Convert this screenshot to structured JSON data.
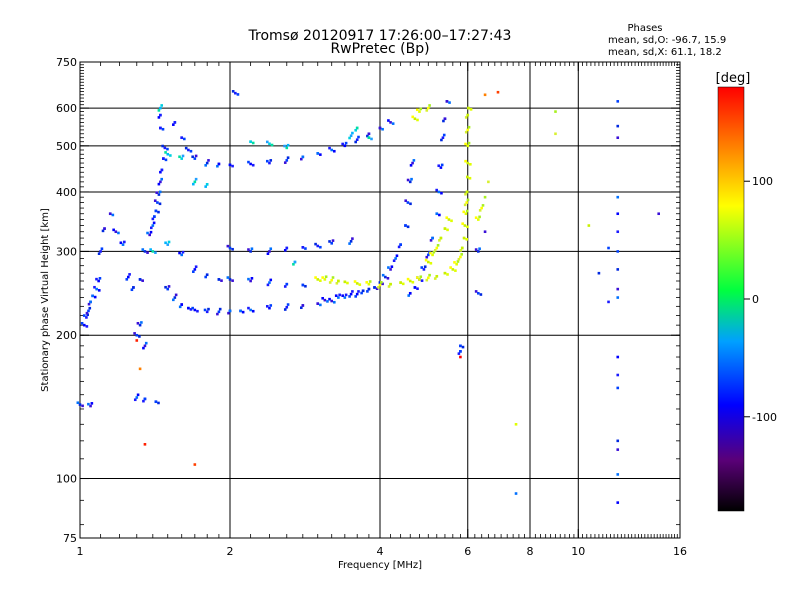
{
  "chart_data": {
    "type": "scatter",
    "title": "Tromsø 20120917 17:26:00–17:27:43",
    "subtitle": "RwPretec (Bp)",
    "xlabel": "Frequency [MHz]",
    "ylabel": "Stationary phase Virtual Height [km]",
    "x_scale": "log",
    "y_scale": "log",
    "xlim": [
      1,
      16
    ],
    "ylim": [
      75,
      750
    ],
    "x_ticks": [
      1,
      2,
      4,
      6,
      8,
      10,
      16
    ],
    "x_tick_labels": [
      "1",
      "2",
      "4",
      "6",
      "8",
      "10",
      "16"
    ],
    "y_ticks": [
      75,
      100,
      200,
      300,
      400,
      500,
      600,
      750
    ],
    "y_tick_labels": [
      "75",
      "100",
      "200",
      "300",
      "400",
      "500",
      "600",
      "750"
    ],
    "x_gridlines": [
      2,
      4,
      6,
      8,
      10
    ],
    "y_gridlines": [
      100,
      200,
      300,
      400,
      500,
      600
    ],
    "grid": true,
    "stats": {
      "header": "Phases",
      "line_o": "mean, sd,O: -96.7, 15.9",
      "line_x": "mean, sd,X:  61.1, 18.2"
    },
    "colorbar": {
      "label": "[deg]",
      "range": [
        -180,
        180
      ],
      "ticks": [
        -100,
        0,
        100
      ],
      "tick_labels": [
        "-100",
        "0",
        "100"
      ],
      "colors": [
        "#000000",
        "#5a0078",
        "#0000ff",
        "#00a0ff",
        "#00ff40",
        "#ffff00",
        "#ff8000",
        "#ff0000"
      ]
    },
    "series": [
      {
        "points": [
          [
            1.02,
            210
          ],
          [
            1.03,
            218
          ],
          [
            1.04,
            225
          ],
          [
            1.05,
            235
          ],
          [
            1.06,
            242
          ],
          [
            1.08,
            250
          ],
          [
            1.09,
            260
          ],
          [
            1.1,
            300
          ],
          [
            1.12,
            335
          ],
          [
            1.15,
            360
          ],
          [
            1.18,
            330
          ],
          [
            1.22,
            310
          ],
          [
            1.25,
            265
          ],
          [
            1.28,
            252
          ],
          [
            1.32,
            262
          ],
          [
            1.35,
            300
          ],
          [
            1.38,
            325
          ],
          [
            1.4,
            340
          ],
          [
            1.41,
            355
          ],
          [
            1.42,
            365
          ],
          [
            1.43,
            380
          ],
          [
            1.44,
            395
          ],
          [
            1.45,
            420
          ],
          [
            1.46,
            445
          ],
          [
            1.47,
            470
          ],
          [
            1.48,
            495
          ],
          [
            1.5,
            250
          ],
          [
            1.55,
            240
          ],
          [
            1.6,
            232
          ],
          [
            1.65,
            228
          ],
          [
            1.7,
            226
          ],
          [
            1.8,
            224
          ],
          [
            1.9,
            224
          ],
          [
            2.0,
            225
          ],
          [
            2.1,
            225
          ],
          [
            2.2,
            226
          ],
          [
            2.4,
            228
          ],
          [
            2.6,
            229
          ],
          [
            2.8,
            231
          ],
          [
            3.0,
            233
          ],
          [
            3.2,
            236
          ],
          [
            3.4,
            240
          ],
          [
            3.6,
            244
          ],
          [
            3.8,
            250
          ],
          [
            4.0,
            258
          ],
          [
            4.1,
            265
          ],
          [
            4.2,
            275
          ],
          [
            4.3,
            290
          ],
          [
            4.4,
            310
          ],
          [
            4.5,
            340
          ],
          [
            4.55,
            380
          ],
          [
            4.6,
            420
          ],
          [
            4.65,
            460
          ],
          [
            1.55,
            560
          ],
          [
            1.6,
            520
          ],
          [
            1.65,
            490
          ],
          [
            1.7,
            470
          ],
          [
            1.8,
            460
          ],
          [
            1.9,
            458
          ],
          [
            2.0,
            456
          ],
          [
            2.2,
            458
          ],
          [
            2.4,
            460
          ],
          [
            2.6,
            466
          ],
          [
            2.8,
            474
          ],
          [
            3.0,
            482
          ],
          [
            3.2,
            490
          ],
          [
            3.4,
            500
          ],
          [
            3.6,
            515
          ],
          [
            3.8,
            530
          ],
          [
            4.0,
            545
          ],
          [
            4.2,
            560
          ],
          [
            1.6,
            295
          ],
          [
            1.7,
            275
          ],
          [
            1.8,
            268
          ],
          [
            1.9,
            262
          ],
          [
            2.0,
            262
          ],
          [
            2.2,
            260
          ],
          [
            2.4,
            258
          ],
          [
            2.6,
            256
          ],
          [
            2.8,
            255
          ],
          [
            2.0,
            305
          ],
          [
            2.2,
            300
          ],
          [
            2.4,
            300
          ],
          [
            2.6,
            305
          ],
          [
            2.8,
            306
          ],
          [
            3.0,
            308
          ],
          [
            3.2,
            312
          ],
          [
            3.5,
            315
          ],
          [
            4.6,
            245
          ],
          [
            4.7,
            252
          ],
          [
            4.8,
            262
          ],
          [
            4.9,
            275
          ],
          [
            5.0,
            295
          ],
          [
            5.1,
            320
          ],
          [
            5.2,
            360
          ],
          [
            5.25,
            400
          ],
          [
            5.3,
            450
          ],
          [
            5.35,
            520
          ],
          [
            5.4,
            570
          ],
          [
            5.45,
            620
          ],
          [
            3.1,
            237
          ],
          [
            3.3,
            240
          ],
          [
            3.5,
            244
          ],
          [
            3.7,
            248
          ],
          [
            3.9,
            252
          ],
          [
            1.0,
            143
          ],
          [
            1.05,
            142
          ],
          [
            1.3,
            148
          ],
          [
            1.35,
            147
          ],
          [
            1.42,
            145
          ],
          [
            1.3,
            200
          ],
          [
            1.32,
            210
          ],
          [
            1.35,
            190
          ],
          [
            1.45,
            580
          ],
          [
            1.45,
            545
          ],
          [
            2.05,
            645
          ],
          [
            12.0,
            620
          ],
          [
            12.0,
            550
          ],
          [
            12.0,
            520
          ],
          [
            12.0,
            390
          ],
          [
            12.0,
            360
          ],
          [
            12.0,
            330
          ],
          [
            12.0,
            300
          ],
          [
            12.0,
            275
          ],
          [
            12.0,
            250
          ],
          [
            12.0,
            240
          ],
          [
            12.0,
            180
          ],
          [
            12.0,
            165
          ],
          [
            12.0,
            155
          ],
          [
            12.0,
            120
          ],
          [
            12.0,
            115
          ],
          [
            12.0,
            102
          ],
          [
            12.0,
            89
          ],
          [
            11.5,
            235
          ],
          [
            11.5,
            305
          ],
          [
            11.0,
            270
          ],
          [
            14.5,
            360
          ],
          [
            7.5,
            93
          ],
          [
            5.8,
            185
          ],
          [
            5.8,
            190
          ],
          [
            6.3,
            245
          ],
          [
            6.3,
            300
          ],
          [
            6.5,
            330
          ]
        ]
      },
      {
        "points": [
          [
            3.0,
            262
          ],
          [
            3.1,
            262
          ],
          [
            3.2,
            261
          ],
          [
            3.3,
            260
          ],
          [
            3.4,
            259
          ],
          [
            3.6,
            257
          ],
          [
            3.8,
            256
          ],
          [
            4.0,
            255
          ],
          [
            4.2,
            256
          ],
          [
            4.4,
            258
          ],
          [
            4.6,
            260
          ],
          [
            4.8,
            262
          ],
          [
            5.0,
            264
          ],
          [
            5.2,
            266
          ],
          [
            5.4,
            270
          ],
          [
            5.6,
            275
          ],
          [
            5.7,
            282
          ],
          [
            5.8,
            292
          ],
          [
            5.85,
            305
          ],
          [
            5.9,
            320
          ],
          [
            5.92,
            340
          ],
          [
            5.95,
            360
          ],
          [
            5.97,
            380
          ],
          [
            5.98,
            400
          ],
          [
            5.99,
            430
          ],
          [
            6.0,
            460
          ],
          [
            6.0,
            500
          ],
          [
            6.0,
            540
          ],
          [
            6.0,
            580
          ],
          [
            6.02,
            600
          ],
          [
            5.0,
            285
          ],
          [
            5.1,
            295
          ],
          [
            5.2,
            305
          ],
          [
            5.3,
            320
          ],
          [
            5.4,
            335
          ],
          [
            5.5,
            350
          ],
          [
            6.3,
            350
          ],
          [
            6.4,
            370
          ],
          [
            6.5,
            390
          ],
          [
            6.6,
            420
          ],
          [
            4.7,
            570
          ],
          [
            4.8,
            590
          ],
          [
            5.0,
            600
          ],
          [
            9.0,
            590
          ],
          [
            9.0,
            530
          ],
          [
            10.5,
            340
          ],
          [
            7.5,
            130
          ]
        ]
      },
      {
        "points": [
          [
            1.5,
            480
          ],
          [
            1.6,
            470
          ],
          [
            1.7,
            420
          ],
          [
            1.8,
            415
          ],
          [
            2.2,
            510
          ],
          [
            2.4,
            505
          ],
          [
            2.6,
            495
          ],
          [
            3.5,
            525
          ],
          [
            3.6,
            545
          ],
          [
            3.8,
            520
          ],
          [
            1.4,
            300
          ],
          [
            1.5,
            310
          ],
          [
            1.45,
            600
          ],
          [
            2.7,
            285
          ]
        ]
      },
      {
        "points": [
          [
            1.7,
            107
          ],
          [
            1.35,
            118
          ],
          [
            1.32,
            170
          ],
          [
            5.8,
            180
          ],
          [
            6.9,
            648
          ],
          [
            1.3,
            195
          ],
          [
            6.5,
            640
          ]
        ]
      }
    ]
  }
}
